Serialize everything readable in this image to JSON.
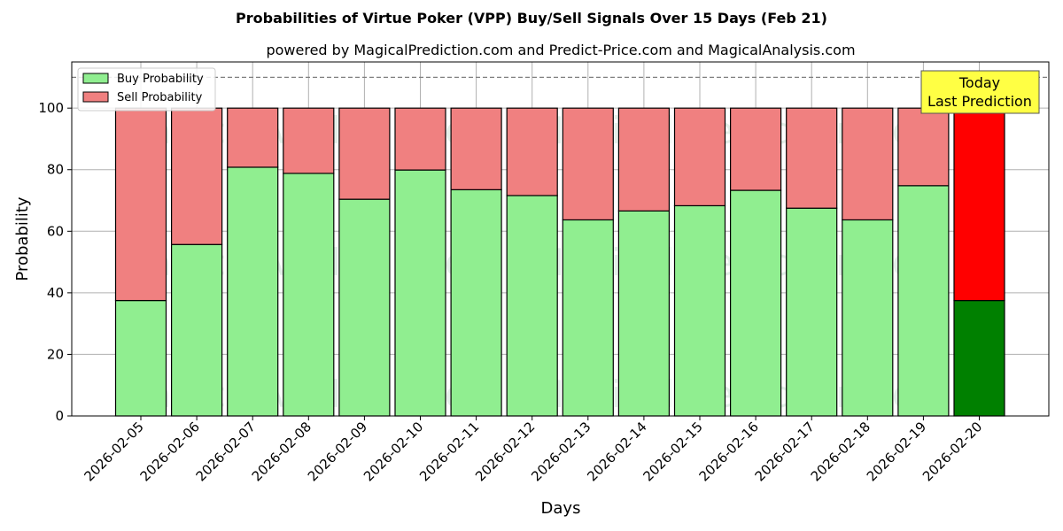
{
  "chart_data": {
    "type": "bar",
    "stacked": true,
    "title": "Probabilities of Virtue Poker (VPP) Buy/Sell Signals Over 15 Days (Feb 21)",
    "subtitle": "powered by MagicalPrediction.com and Predict-Price.com and MagicalAnalysis.com",
    "xlabel": "Days",
    "ylabel": "Probability",
    "ylim": [
      0,
      115
    ],
    "yticks": [
      0,
      20,
      40,
      60,
      80,
      100
    ],
    "grid": true,
    "legend_position": "top-left",
    "reference_line": 110,
    "categories": [
      "2026-02-05",
      "2026-02-06",
      "2026-02-07",
      "2026-02-08",
      "2026-02-09",
      "2026-02-10",
      "2026-02-11",
      "2026-02-12",
      "2026-02-13",
      "2026-02-14",
      "2026-02-15",
      "2026-02-16",
      "2026-02-17",
      "2026-02-18",
      "2026-02-19",
      "2026-02-20"
    ],
    "series": [
      {
        "name": "Buy Probability",
        "color": "#90ee90",
        "highlight_color": "#008000",
        "values": [
          37.5,
          55.7,
          80.8,
          78.8,
          70.4,
          79.9,
          73.5,
          71.6,
          63.7,
          66.6,
          68.3,
          73.3,
          67.5,
          63.7,
          74.8,
          37.5
        ]
      },
      {
        "name": "Sell Probability",
        "color": "#f08080",
        "highlight_color": "#ff0000",
        "values": [
          62.5,
          44.3,
          19.2,
          21.2,
          29.6,
          20.1,
          26.5,
          28.4,
          36.3,
          33.4,
          31.7,
          26.7,
          32.5,
          36.3,
          25.2,
          62.5
        ]
      }
    ],
    "annotation": {
      "lines": [
        "Today",
        "Last Prediction"
      ],
      "background": "#ffff44"
    },
    "watermarks": [
      "MagicalAnalysis.com",
      "MagicalPrediction.com"
    ]
  }
}
